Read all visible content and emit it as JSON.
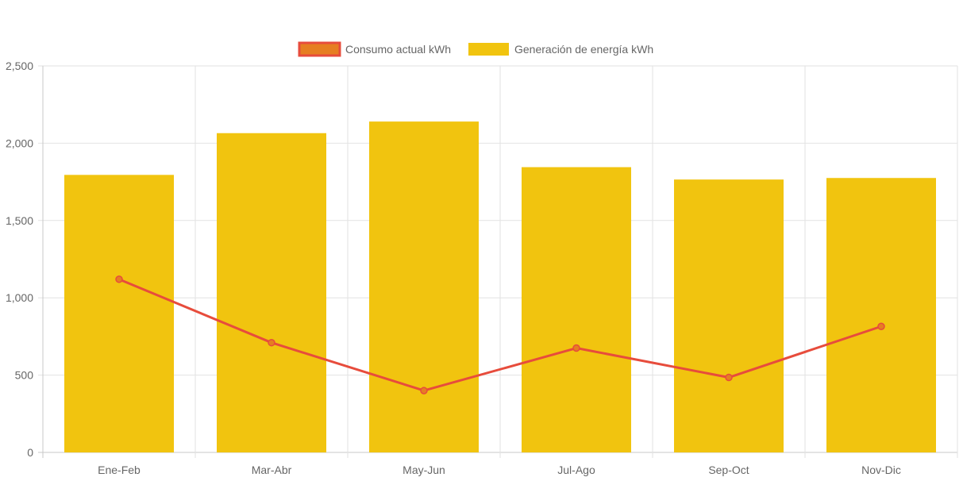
{
  "chart_data": {
    "type": "bar",
    "categories": [
      "Ene-Feb",
      "Mar-Abr",
      "May-Jun",
      "Jul-Ago",
      "Sep-Oct",
      "Nov-Dic"
    ],
    "series": [
      {
        "name": "Consumo actual kWh",
        "render": "line",
        "color": "#e74c3c",
        "fill": "#e67e22",
        "values": [
          1120,
          710,
          400,
          675,
          485,
          815
        ]
      },
      {
        "name": "Generación de energía kWh",
        "render": "bar",
        "color": "#f1c40f",
        "values": [
          1795,
          2065,
          2140,
          1845,
          1765,
          1775
        ]
      }
    ],
    "ylim": [
      0,
      2500
    ],
    "yticks": [
      0,
      500,
      1000,
      1500,
      2000,
      2500
    ],
    "ytick_labels": [
      "0",
      "500",
      "1,000",
      "1,500",
      "2,000",
      "2,500"
    ],
    "grid": true,
    "legend": "top-center",
    "xlabel": "",
    "ylabel": "",
    "title": ""
  }
}
